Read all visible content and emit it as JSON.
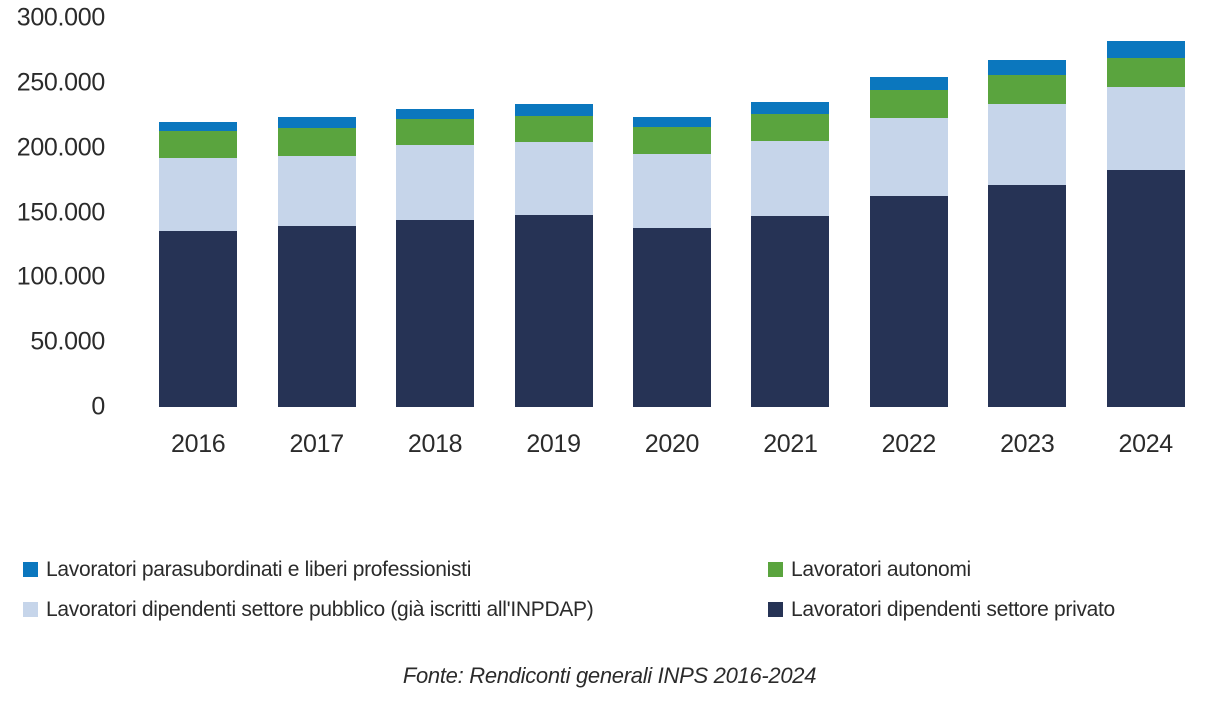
{
  "chart_data": {
    "type": "bar",
    "stacked": true,
    "title": "",
    "xlabel": "",
    "ylabel": "",
    "grid": false,
    "legend_position": "bottom",
    "categories": [
      "2016",
      "2017",
      "2018",
      "2019",
      "2020",
      "2021",
      "2022",
      "2023",
      "2024"
    ],
    "series": [
      {
        "name": "Lavoratori dipendenti settore privato",
        "color": "#263355",
        "values": [
          135500,
          139500,
          144000,
          148000,
          138000,
          147500,
          162500,
          171500,
          182500
        ]
      },
      {
        "name": "Lavoratori dipendenti settore pubblico (già iscritti all'INPDAP)",
        "color": "#c6d5ea",
        "values": [
          56500,
          54000,
          58000,
          56500,
          57500,
          58000,
          60500,
          62000,
          64500
        ]
      },
      {
        "name": "Lavoratori autonomi",
        "color": "#5aa43e",
        "values": [
          20500,
          21500,
          20500,
          20000,
          20500,
          20500,
          21500,
          22500,
          22500
        ]
      },
      {
        "name": "Lavoratori parasubordinati e liberi professionisti",
        "color": "#0b77be",
        "values": [
          7000,
          8500,
          7000,
          9500,
          7500,
          9000,
          10000,
          11500,
          12500
        ]
      }
    ],
    "y_axis": {
      "min": 0,
      "max": 300000,
      "tick_step": 50000,
      "ticks": [
        {
          "value": 0,
          "label": "0"
        },
        {
          "value": 50000,
          "label": "50.000"
        },
        {
          "value": 100000,
          "label": "100.000"
        },
        {
          "value": 150000,
          "label": "150.000"
        },
        {
          "value": 200000,
          "label": "200.000"
        },
        {
          "value": 250000,
          "label": "250.000"
        },
        {
          "value": 300000,
          "label": "300.000"
        }
      ]
    }
  },
  "legend": {
    "items": [
      {
        "label": "Lavoratori parasubordinati e liberi professionisti",
        "color": "#0b77be"
      },
      {
        "label": "Lavoratori autonomi",
        "color": "#5aa43e"
      },
      {
        "label": "Lavoratori dipendenti settore pubblico (già iscritti all'INPDAP)",
        "color": "#c6d5ea"
      },
      {
        "label": "Lavoratori dipendenti settore privato",
        "color": "#263355"
      }
    ]
  },
  "footer": {
    "source_text": "Fonte: Rendiconti generali INPS 2016-2024"
  }
}
